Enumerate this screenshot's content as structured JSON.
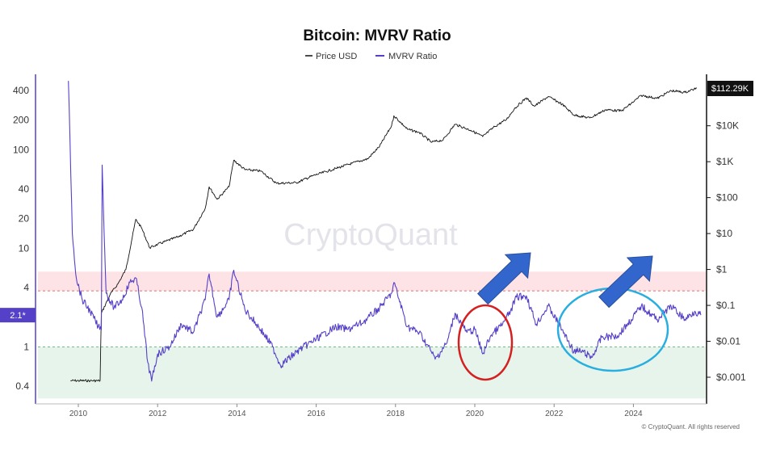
{
  "chart_data": {
    "type": "line",
    "title": "Bitcoin: MVRV Ratio",
    "y_scale": "log",
    "x_ticks": [
      "2010",
      "2012",
      "2014",
      "2016",
      "2018",
      "2020",
      "2022",
      "2024"
    ],
    "left_axis": {
      "ticks": [
        {
          "label": "400",
          "value": 400
        },
        {
          "label": "200",
          "value": 200
        },
        {
          "label": "100",
          "value": 100
        },
        {
          "label": "40",
          "value": 40
        },
        {
          "label": "20",
          "value": 20
        },
        {
          "label": "10",
          "value": 10
        },
        {
          "label": "4",
          "value": 4
        },
        {
          "label": "1",
          "value": 1
        },
        {
          "label": "0.4",
          "value": 0.4
        }
      ],
      "current_value_label": "2.1*",
      "current_value": 2.1
    },
    "right_axis": {
      "ticks": [
        {
          "label": "$10K",
          "value": 10000
        },
        {
          "label": "$1K",
          "value": 1000
        },
        {
          "label": "$100",
          "value": 100
        },
        {
          "label": "$10",
          "value": 10
        },
        {
          "label": "$1",
          "value": 1
        },
        {
          "label": "$0.1",
          "value": 0.1
        },
        {
          "label": "$0.01",
          "value": 0.01
        },
        {
          "label": "$0.001",
          "value": 0.001
        }
      ],
      "current_value_label": "$112.29K",
      "current_value": 112290
    },
    "zones": [
      {
        "name": "overvalued",
        "from": 3.7,
        "to": 5.8,
        "color": "#fde3e5"
      },
      {
        "name": "undervalued",
        "from": 0.3,
        "to": 1.0,
        "color": "#e7f4ec"
      }
    ],
    "reference_lines": [
      {
        "value": 3.7,
        "color": "#e07070"
      },
      {
        "value": 1.0,
        "color": "#6cc080"
      }
    ],
    "series": [
      {
        "name": "Price USD",
        "axis": "right",
        "color": "#111111",
        "points": [
          [
            2009.8,
            0.0008
          ],
          [
            2010.3,
            0.0008
          ],
          [
            2010.55,
            0.0008
          ],
          [
            2010.58,
            0.06
          ],
          [
            2010.8,
            0.2
          ],
          [
            2011.0,
            0.4
          ],
          [
            2011.2,
            1.0
          ],
          [
            2011.45,
            25
          ],
          [
            2011.6,
            14
          ],
          [
            2011.8,
            4
          ],
          [
            2012.0,
            5
          ],
          [
            2012.5,
            8
          ],
          [
            2012.9,
            13
          ],
          [
            2013.2,
            50
          ],
          [
            2013.3,
            200
          ],
          [
            2013.5,
            90
          ],
          [
            2013.8,
            200
          ],
          [
            2013.92,
            1100
          ],
          [
            2014.2,
            600
          ],
          [
            2014.6,
            550
          ],
          [
            2015.0,
            250
          ],
          [
            2015.5,
            260
          ],
          [
            2015.9,
            400
          ],
          [
            2016.5,
            650
          ],
          [
            2016.9,
            900
          ],
          [
            2017.3,
            1200
          ],
          [
            2017.6,
            2700
          ],
          [
            2017.9,
            10000
          ],
          [
            2017.96,
            19000
          ],
          [
            2018.3,
            8000
          ],
          [
            2018.6,
            6500
          ],
          [
            2018.9,
            3500
          ],
          [
            2019.2,
            4000
          ],
          [
            2019.5,
            11000
          ],
          [
            2019.9,
            7500
          ],
          [
            2020.2,
            5000
          ],
          [
            2020.5,
            9500
          ],
          [
            2020.8,
            15000
          ],
          [
            2021.0,
            30000
          ],
          [
            2021.3,
            60000
          ],
          [
            2021.5,
            35000
          ],
          [
            2021.85,
            65000
          ],
          [
            2022.2,
            40000
          ],
          [
            2022.5,
            20000
          ],
          [
            2022.9,
            16500
          ],
          [
            2023.3,
            28000
          ],
          [
            2023.7,
            26000
          ],
          [
            2023.95,
            42000
          ],
          [
            2024.2,
            70000
          ],
          [
            2024.6,
            58000
          ],
          [
            2024.95,
            95000
          ],
          [
            2025.3,
            85000
          ],
          [
            2025.6,
            112290
          ]
        ]
      },
      {
        "name": "MVRV Ratio",
        "axis": "left",
        "color": "#5541c8",
        "points": [
          [
            2009.75,
            500
          ],
          [
            2009.85,
            14
          ],
          [
            2009.95,
            5
          ],
          [
            2010.1,
            3.0
          ],
          [
            2010.3,
            2.3
          ],
          [
            2010.5,
            1.6
          ],
          [
            2010.58,
            1.5
          ],
          [
            2010.6,
            70
          ],
          [
            2010.7,
            3.5
          ],
          [
            2010.9,
            2.5
          ],
          [
            2011.1,
            3.0
          ],
          [
            2011.3,
            4.5
          ],
          [
            2011.45,
            5.0
          ],
          [
            2011.6,
            2.5
          ],
          [
            2011.75,
            0.7
          ],
          [
            2011.85,
            0.45
          ],
          [
            2012.0,
            0.85
          ],
          [
            2012.3,
            1.0
          ],
          [
            2012.6,
            1.7
          ],
          [
            2012.9,
            1.4
          ],
          [
            2013.2,
            3.0
          ],
          [
            2013.3,
            5.5
          ],
          [
            2013.5,
            2.0
          ],
          [
            2013.8,
            3.0
          ],
          [
            2013.92,
            6.0
          ],
          [
            2014.2,
            2.4
          ],
          [
            2014.6,
            1.5
          ],
          [
            2014.9,
            1.0
          ],
          [
            2015.1,
            0.65
          ],
          [
            2015.6,
            0.95
          ],
          [
            2016.0,
            1.2
          ],
          [
            2016.5,
            1.6
          ],
          [
            2016.8,
            1.5
          ],
          [
            2017.2,
            1.8
          ],
          [
            2017.6,
            2.5
          ],
          [
            2017.9,
            3.5
          ],
          [
            2017.96,
            4.5
          ],
          [
            2018.3,
            1.6
          ],
          [
            2018.6,
            1.4
          ],
          [
            2018.9,
            0.9
          ],
          [
            2019.0,
            0.75
          ],
          [
            2019.3,
            1.1
          ],
          [
            2019.5,
            2.2
          ],
          [
            2019.8,
            1.4
          ],
          [
            2020.0,
            1.5
          ],
          [
            2020.2,
            0.85
          ],
          [
            2020.4,
            1.3
          ],
          [
            2020.7,
            1.7
          ],
          [
            2020.9,
            2.3
          ],
          [
            2021.05,
            3.2
          ],
          [
            2021.3,
            3.3
          ],
          [
            2021.55,
            1.7
          ],
          [
            2021.85,
            2.6
          ],
          [
            2022.2,
            1.5
          ],
          [
            2022.5,
            0.9
          ],
          [
            2022.7,
            0.9
          ],
          [
            2022.95,
            0.78
          ],
          [
            2023.2,
            1.25
          ],
          [
            2023.6,
            1.3
          ],
          [
            2023.95,
            1.9
          ],
          [
            2024.2,
            2.6
          ],
          [
            2024.6,
            1.9
          ],
          [
            2024.95,
            2.6
          ],
          [
            2025.3,
            1.9
          ],
          [
            2025.55,
            2.3
          ],
          [
            2025.7,
            2.1
          ]
        ]
      }
    ],
    "legend": [
      {
        "label": "Price USD",
        "color": "#111111"
      },
      {
        "label": "MVRV Ratio",
        "color": "#5541c8"
      }
    ],
    "legend_position": "top-center",
    "watermark": "CryptoQuant",
    "copyright": "© CryptoQuant. All rights reserved",
    "annotations": [
      {
        "type": "ellipse",
        "color": "#d42020",
        "x_center": 2020.2,
        "value_center": 1.0
      },
      {
        "type": "ellipse",
        "color": "#29aee0",
        "x_center": 2023.4,
        "value_center": 1.25
      },
      {
        "type": "arrow",
        "color": "#3366cc",
        "direction": "up-right",
        "near_x": 2020.8
      },
      {
        "type": "arrow",
        "color": "#3366cc",
        "direction": "up-right",
        "near_x": 2023.6
      }
    ]
  }
}
